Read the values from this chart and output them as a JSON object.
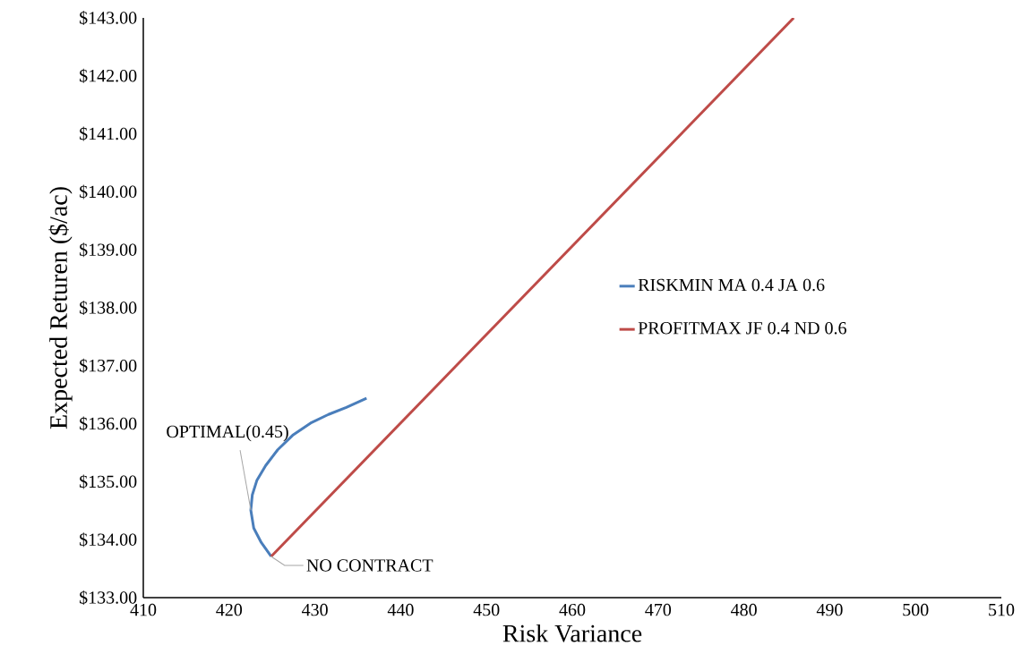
{
  "chart_data": {
    "type": "line",
    "xlabel": "Risk Variance",
    "ylabel": "Expected  Returen ($/ac)",
    "xlim": [
      410,
      510
    ],
    "xticks": [
      410,
      420,
      430,
      440,
      450,
      460,
      470,
      480,
      490,
      500,
      510
    ],
    "ylim": [
      133,
      143
    ],
    "yticks": [
      {
        "value": 133,
        "label": "$133.00"
      },
      {
        "value": 134,
        "label": "$134.00"
      },
      {
        "value": 135,
        "label": "$135.00"
      },
      {
        "value": 136,
        "label": "$136.00"
      },
      {
        "value": 137,
        "label": "$137.00"
      },
      {
        "value": 138,
        "label": "$138.00"
      },
      {
        "value": 139,
        "label": "$139.00"
      },
      {
        "value": 140,
        "label": "$140.00"
      },
      {
        "value": 141,
        "label": "$141.00"
      },
      {
        "value": 142,
        "label": "$142.00"
      },
      {
        "value": 143,
        "label": "$143.00"
      }
    ],
    "series": [
      {
        "name": "RISKMIN MA 0.4 JA 0.6",
        "color": "#4a7ebb",
        "x": [
          424.9,
          423.75,
          422.87,
          422.53,
          422.7,
          423.23,
          424.27,
          425.66,
          427.4,
          429.49,
          431.58,
          433.66,
          436.02
        ],
        "values": [
          133.71,
          133.95,
          134.2,
          134.51,
          134.77,
          135.02,
          135.28,
          135.55,
          135.8,
          136.01,
          136.16,
          136.28,
          136.44
        ]
      },
      {
        "name": "PROFITMAX JF 0.4 ND 0.6",
        "color": "#be4b48",
        "x": [
          424.9,
          485.8
        ],
        "values": [
          133.71,
          143
        ]
      }
    ],
    "annotations": [
      {
        "text": "OPTIMAL(0.45)",
        "x": 422.53,
        "y": 134.51
      },
      {
        "text": "NO CONTRACT",
        "x": 424.9,
        "y": 133.71
      }
    ],
    "legend": "right",
    "grid": false,
    "marker": "none",
    "line_style": "solid"
  }
}
